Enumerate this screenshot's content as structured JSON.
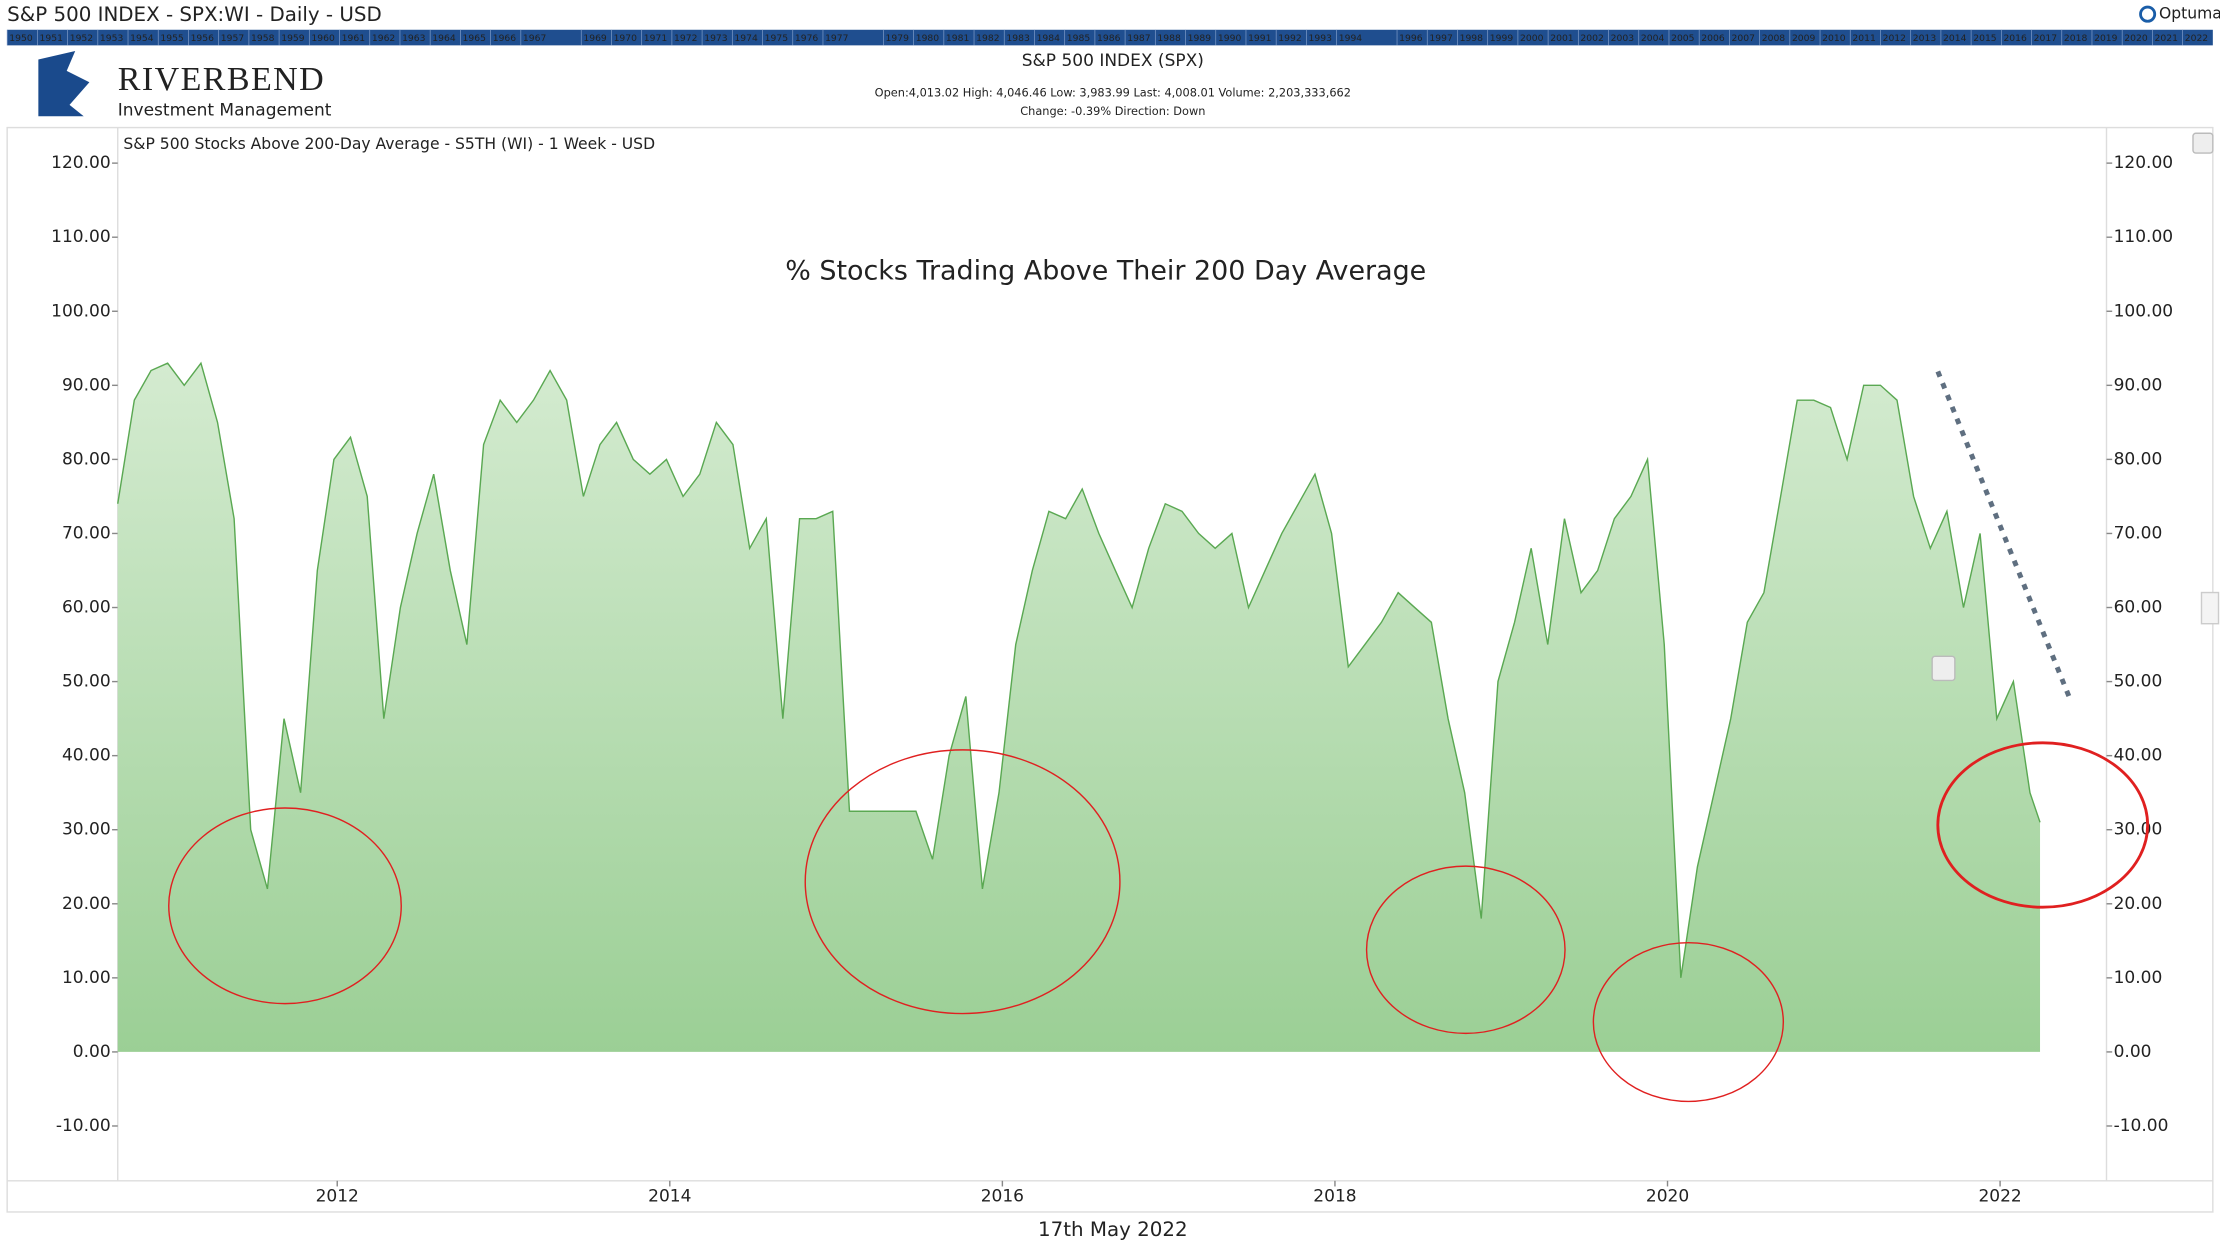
{
  "header": {
    "title": "S&P 500 INDEX - SPX:WI - Daily - USD",
    "brand": "Optuma",
    "timeline_years": [
      "1950",
      "1951",
      "1952",
      "1953",
      "1954",
      "1955",
      "1956",
      "1957",
      "1958",
      "1959",
      "1960",
      "1961",
      "1962",
      "1963",
      "1964",
      "1965",
      "1966",
      "1967",
      "1969",
      "1970",
      "1971",
      "1972",
      "1973",
      "1974",
      "1975",
      "1976",
      "1977",
      "1979",
      "1980",
      "1981",
      "1982",
      "1983",
      "1984",
      "1985",
      "1986",
      "1987",
      "1988",
      "1989",
      "1990",
      "1991",
      "1992",
      "1993",
      "1994",
      "1996",
      "1997",
      "1998",
      "1999",
      "2000",
      "2001",
      "2002",
      "2003",
      "2004",
      "2005",
      "2006",
      "2007",
      "2008",
      "2009",
      "2010",
      "2011",
      "2012",
      "2013",
      "2014",
      "2015",
      "2016",
      "2017",
      "2018",
      "2019",
      "2020",
      "2021",
      "2022"
    ],
    "logo_name": "RIVERBEND",
    "logo_sub": "Investment Management",
    "instrument": "S&P 500 INDEX (SPX)",
    "quote": "Open:4,013.02   High: 4,046.46   Low: 3,983.99   Last: 4,008.01   Volume: 2,203,333,662",
    "change": "Change: -0.39%   Direction: Down"
  },
  "chart_data": {
    "type": "area",
    "subtitle": "S&P 500 Stocks Above 200-Day Average - S5TH (WI) - 1 Week - USD",
    "title": "% Stocks Trading Above Their 200 Day Average",
    "date_label": "17th May 2022",
    "xlim": [
      2010.68,
      2022.64
    ],
    "xticks": [
      2012,
      2014,
      2016,
      2018,
      2020,
      2022
    ],
    "ylim": [
      -17.4,
      124.8
    ],
    "yticks": [
      {
        "value": -10,
        "label": "-10.00"
      },
      {
        "value": 0,
        "label": "0.00"
      },
      {
        "value": 10,
        "label": "10.00"
      },
      {
        "value": 20,
        "label": "20.00"
      },
      {
        "value": 30,
        "label": "30.00"
      },
      {
        "value": 40,
        "label": "40.00"
      },
      {
        "value": 50,
        "label": "50.00"
      },
      {
        "value": 60,
        "label": "60.00"
      },
      {
        "value": 70,
        "label": "70.00"
      },
      {
        "value": 80,
        "label": "80.00"
      },
      {
        "value": 90,
        "label": "90.00"
      },
      {
        "value": 100,
        "label": "100.00"
      },
      {
        "value": 110,
        "label": "110.00"
      },
      {
        "value": 120,
        "label": "120.00"
      }
    ],
    "x": [
      2010.68,
      2010.78,
      2010.88,
      2010.98,
      2011.08,
      2011.18,
      2011.28,
      2011.38,
      2011.48,
      2011.58,
      2011.68,
      2011.78,
      2011.88,
      2011.98,
      2012.08,
      2012.18,
      2012.28,
      2012.38,
      2012.48,
      2012.58,
      2012.68,
      2012.78,
      2012.88,
      2012.98,
      2013.08,
      2013.18,
      2013.28,
      2013.38,
      2013.48,
      2013.58,
      2013.68,
      2013.78,
      2013.88,
      2013.98,
      2014.08,
      2014.18,
      2014.28,
      2014.38,
      2014.48,
      2014.58,
      2014.68,
      2014.78,
      2014.88,
      2014.98,
      2015.08,
      2015.18,
      2015.28,
      2015.38,
      2015.48,
      2015.58,
      2015.68,
      2015.78,
      2015.88,
      2015.98,
      2016.08,
      2016.18,
      2016.28,
      2016.38,
      2016.48,
      2016.58,
      2016.68,
      2016.78,
      2016.88,
      2016.98,
      2017.08,
      2017.18,
      2017.28,
      2017.38,
      2017.48,
      2017.58,
      2017.68,
      2017.78,
      2017.88,
      2017.98,
      2018.08,
      2018.18,
      2018.28,
      2018.38,
      2018.48,
      2018.58,
      2018.68,
      2018.78,
      2018.88,
      2018.98,
      2019.08,
      2019.18,
      2019.28,
      2019.38,
      2019.48,
      2019.58,
      2019.68,
      2019.78,
      2019.88,
      2019.98,
      2020.08,
      2020.18,
      2020.28,
      2020.38,
      2020.48,
      2020.58,
      2020.68,
      2020.78,
      2020.88,
      2020.98,
      2021.08,
      2021.18,
      2021.28,
      2021.38,
      2021.48,
      2021.58,
      2021.68,
      2021.78,
      2021.88,
      2021.98,
      2022.08,
      2022.18,
      2022.24
    ],
    "series": [
      {
        "color": "#5aa852",
        "values": [
          74,
          88,
          92,
          93,
          90,
          93,
          85,
          72,
          30,
          22,
          45,
          35,
          65,
          80,
          83,
          75,
          45,
          60,
          70,
          78,
          65,
          55,
          82,
          88,
          85,
          88,
          92,
          88,
          75,
          82,
          85,
          80,
          78,
          80,
          75,
          78,
          85,
          82,
          68,
          72,
          45,
          72,
          72,
          73,
          32.5,
          32.5,
          32.5,
          32.5,
          32.5,
          26,
          40,
          48,
          22,
          35,
          55,
          65,
          73,
          72,
          76,
          70,
          65,
          60,
          68,
          74,
          73,
          70,
          68,
          70,
          60,
          65,
          70,
          74,
          78,
          70,
          52,
          55,
          58,
          62,
          60,
          58,
          45,
          35,
          18,
          50,
          58,
          68,
          55,
          72,
          62,
          65,
          72,
          75,
          80,
          55,
          10,
          25,
          35,
          45,
          58,
          62,
          75,
          88,
          88,
          87,
          80,
          90,
          90,
          88,
          75,
          68,
          73,
          60,
          70,
          45,
          50,
          35,
          31
        ]
      }
    ]
  }
}
